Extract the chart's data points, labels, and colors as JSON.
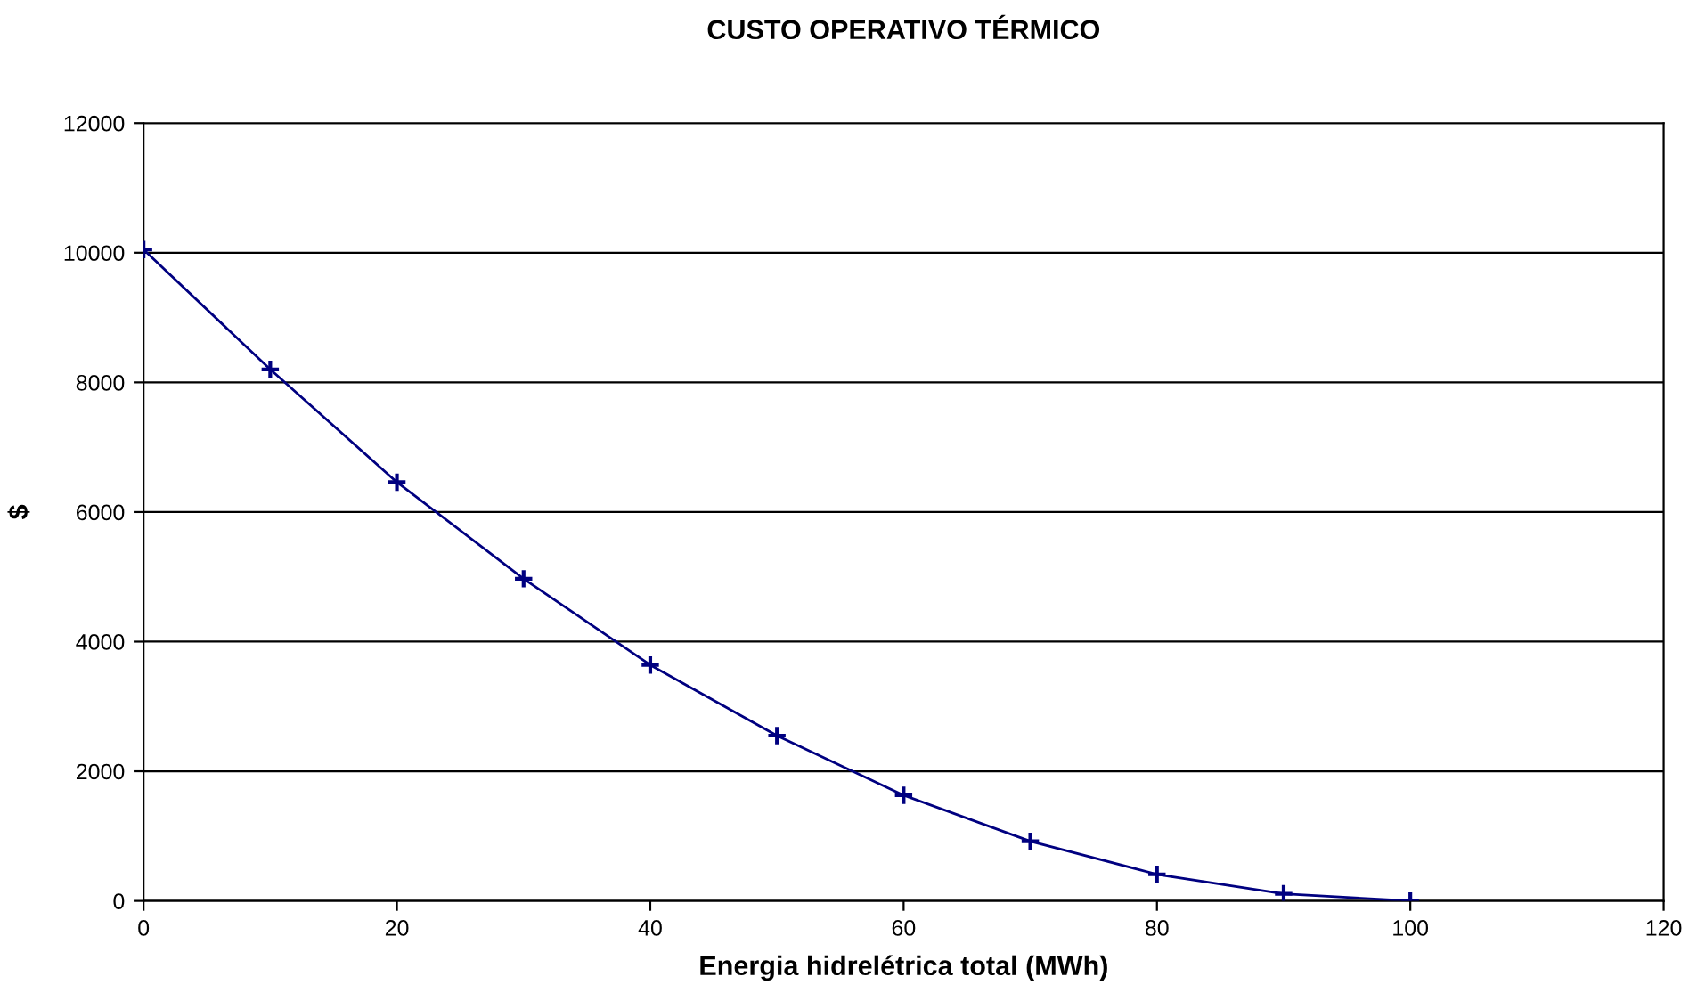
{
  "chart_data": {
    "type": "line",
    "title": "CUSTO OPERATIVO TÉRMICO",
    "xlabel": "Energia hidrelétrica total (MWh)",
    "ylabel": "$",
    "x": [
      0,
      10,
      20,
      30,
      40,
      50,
      60,
      70,
      80,
      90,
      100
    ],
    "series": [
      {
        "color": "#000080",
        "values": [
          10050,
          8200,
          6460,
          4970,
          3640,
          2550,
          1630,
          920,
          410,
          110,
          0
        ]
      }
    ],
    "xlim": [
      0,
      120
    ],
    "xticks": [
      0,
      20,
      40,
      60,
      80,
      100,
      120
    ],
    "ylim": [
      0,
      12000
    ],
    "yticks": [
      0,
      2000,
      4000,
      6000,
      8000,
      10000,
      12000
    ],
    "grid": "y",
    "legend": false,
    "marker": "cross",
    "line_style": "solid"
  }
}
